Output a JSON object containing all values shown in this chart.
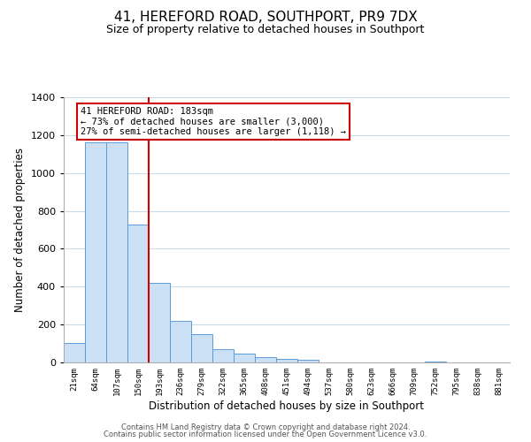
{
  "title": "41, HEREFORD ROAD, SOUTHPORT, PR9 7DX",
  "subtitle": "Size of property relative to detached houses in Southport",
  "xlabel": "Distribution of detached houses by size in Southport",
  "ylabel": "Number of detached properties",
  "bar_labels": [
    "21sqm",
    "64sqm",
    "107sqm",
    "150sqm",
    "193sqm",
    "236sqm",
    "279sqm",
    "322sqm",
    "365sqm",
    "408sqm",
    "451sqm",
    "494sqm",
    "537sqm",
    "580sqm",
    "623sqm",
    "666sqm",
    "709sqm",
    "752sqm",
    "795sqm",
    "838sqm",
    "881sqm"
  ],
  "bar_values": [
    105,
    1160,
    1160,
    730,
    420,
    220,
    148,
    70,
    48,
    30,
    18,
    15,
    0,
    0,
    0,
    0,
    0,
    5,
    0,
    0,
    0
  ],
  "bar_color": "#cce0f5",
  "bar_edge_color": "#5b9bd5",
  "vline_color": "#cc0000",
  "vline_index": 3.5,
  "annotation_text": "41 HEREFORD ROAD: 183sqm\n← 73% of detached houses are smaller (3,000)\n27% of semi-detached houses are larger (1,118) →",
  "annotation_box_facecolor": "#ffffff",
  "annotation_box_edgecolor": "#cc0000",
  "ylim": [
    0,
    1400
  ],
  "yticks": [
    0,
    200,
    400,
    600,
    800,
    1000,
    1200,
    1400
  ],
  "footer_line1": "Contains HM Land Registry data © Crown copyright and database right 2024.",
  "footer_line2": "Contains public sector information licensed under the Open Government Licence v3.0.",
  "title_fontsize": 11,
  "subtitle_fontsize": 9,
  "background_color": "#ffffff",
  "grid_color": "#c8d8ea"
}
